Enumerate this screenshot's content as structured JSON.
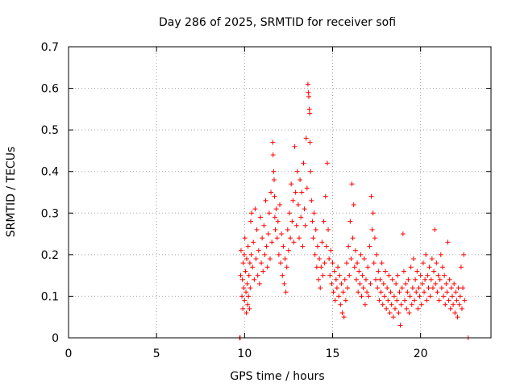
{
  "chart_data": {
    "type": "scatter",
    "title": "Day 286 of 2025, SRMTID for receiver sofi",
    "xlabel": "GPS time / hours",
    "ylabel": "SRMTID / TECUs",
    "xlim": [
      0,
      24
    ],
    "ylim": [
      0,
      0.7
    ],
    "xticks": [
      0,
      5,
      10,
      15,
      20
    ],
    "yticks": [
      0,
      0.1,
      0.2,
      0.3,
      0.4,
      0.5,
      0.6,
      0.7
    ],
    "xtick_labels": [
      "0",
      "5",
      "10",
      "15",
      "20"
    ],
    "ytick_labels": [
      "0",
      "0.1",
      "0.2",
      "0.3",
      "0.4",
      "0.5",
      "0.6",
      "0.7"
    ],
    "grid": true,
    "marker": "+",
    "color": "#ff0000",
    "series": [
      {
        "name": "SRMTID",
        "x": [
          9.72,
          9.75,
          9.78,
          9.8,
          9.85,
          9.88,
          9.9,
          9.92,
          9.95,
          9.98,
          10.0,
          10.02,
          10.05,
          10.08,
          10.1,
          10.12,
          10.15,
          10.18,
          10.2,
          10.22,
          10.25,
          10.28,
          10.3,
          10.32,
          10.35,
          10.38,
          10.4,
          10.45,
          10.5,
          10.55,
          10.6,
          10.65,
          10.7,
          10.75,
          10.8,
          10.85,
          10.9,
          10.95,
          11.0,
          11.05,
          11.1,
          11.15,
          11.2,
          11.25,
          11.3,
          11.35,
          11.4,
          11.45,
          11.5,
          11.55,
          11.6,
          11.62,
          11.65,
          11.68,
          11.7,
          11.72,
          11.75,
          11.8,
          11.85,
          11.9,
          11.95,
          12.0,
          12.05,
          12.1,
          12.15,
          12.2,
          12.25,
          12.3,
          12.35,
          12.4,
          12.45,
          12.5,
          12.55,
          12.6,
          12.65,
          12.7,
          12.75,
          12.8,
          12.85,
          12.9,
          12.95,
          13.0,
          13.05,
          13.1,
          13.15,
          13.2,
          13.25,
          13.3,
          13.35,
          13.4,
          13.45,
          13.5,
          13.55,
          13.6,
          13.62,
          13.65,
          13.68,
          13.7,
          13.72,
          13.75,
          13.8,
          13.85,
          13.9,
          13.95,
          14.0,
          14.05,
          14.1,
          14.15,
          14.2,
          14.25,
          14.3,
          14.35,
          14.4,
          14.45,
          14.5,
          14.55,
          14.6,
          14.65,
          14.7,
          14.75,
          14.8,
          14.85,
          14.9,
          14.95,
          15.0,
          15.05,
          15.1,
          15.15,
          15.2,
          15.25,
          15.3,
          15.35,
          15.4,
          15.45,
          15.5,
          15.55,
          15.6,
          15.65,
          15.7,
          15.75,
          15.8,
          15.85,
          15.9,
          15.95,
          16.0,
          16.05,
          16.1,
          16.15,
          16.2,
          16.25,
          16.3,
          16.35,
          16.4,
          16.45,
          16.5,
          16.55,
          16.6,
          16.65,
          16.7,
          16.75,
          16.8,
          16.85,
          16.9,
          16.95,
          17.0,
          17.05,
          17.1,
          17.15,
          17.2,
          17.25,
          17.3,
          17.35,
          17.4,
          17.45,
          17.5,
          17.55,
          17.6,
          17.65,
          17.7,
          17.75,
          17.8,
          17.85,
          17.9,
          17.95,
          18.0,
          18.05,
          18.1,
          18.15,
          18.2,
          18.25,
          18.3,
          18.35,
          18.4,
          18.45,
          18.5,
          18.55,
          18.6,
          18.65,
          18.7,
          18.75,
          18.8,
          18.85,
          18.9,
          18.95,
          19.0,
          19.05,
          19.1,
          19.15,
          19.2,
          19.25,
          19.3,
          19.35,
          19.4,
          19.45,
          19.5,
          19.55,
          19.6,
          19.65,
          19.7,
          19.75,
          19.8,
          19.85,
          19.9,
          19.95,
          20.0,
          20.05,
          20.1,
          20.15,
          20.2,
          20.25,
          20.3,
          20.35,
          20.4,
          20.45,
          20.5,
          20.55,
          20.6,
          20.65,
          20.7,
          20.75,
          20.8,
          20.85,
          20.9,
          20.95,
          21.0,
          21.05,
          21.1,
          21.15,
          21.2,
          21.25,
          21.3,
          21.35,
          21.4,
          21.45,
          21.5,
          21.55,
          21.6,
          21.65,
          21.7,
          21.75,
          21.8,
          21.85,
          21.9,
          21.95,
          22.0,
          22.05,
          22.1,
          22.15,
          22.2,
          22.25,
          22.3,
          22.35,
          22.4,
          22.45,
          22.5,
          22.7
        ],
        "y": [
          0.0,
          0.0,
          0.15,
          0.21,
          0.1,
          0.14,
          0.07,
          0.18,
          0.12,
          0.2,
          0.09,
          0.24,
          0.16,
          0.11,
          0.06,
          0.19,
          0.13,
          0.08,
          0.22,
          0.1,
          0.15,
          0.07,
          0.18,
          0.12,
          0.28,
          0.2,
          0.3,
          0.17,
          0.23,
          0.14,
          0.31,
          0.19,
          0.26,
          0.15,
          0.21,
          0.13,
          0.29,
          0.18,
          0.24,
          0.16,
          0.27,
          0.2,
          0.33,
          0.22,
          0.17,
          0.25,
          0.3,
          0.19,
          0.35,
          0.23,
          0.47,
          0.44,
          0.4,
          0.38,
          0.34,
          0.29,
          0.26,
          0.31,
          0.24,
          0.28,
          0.2,
          0.32,
          0.18,
          0.25,
          0.15,
          0.22,
          0.13,
          0.19,
          0.11,
          0.17,
          0.26,
          0.21,
          0.3,
          0.24,
          0.37,
          0.28,
          0.33,
          0.23,
          0.46,
          0.35,
          0.27,
          0.4,
          0.32,
          0.24,
          0.38,
          0.29,
          0.35,
          0.22,
          0.42,
          0.31,
          0.27,
          0.48,
          0.36,
          0.61,
          0.59,
          0.58,
          0.55,
          0.54,
          0.47,
          0.4,
          0.33,
          0.28,
          0.24,
          0.3,
          0.2,
          0.26,
          0.17,
          0.22,
          0.14,
          0.19,
          0.12,
          0.17,
          0.23,
          0.15,
          0.28,
          0.18,
          0.34,
          0.22,
          0.42,
          0.26,
          0.19,
          0.15,
          0.21,
          0.13,
          0.18,
          0.11,
          0.16,
          0.09,
          0.14,
          0.12,
          0.17,
          0.1,
          0.15,
          0.08,
          0.13,
          0.06,
          0.11,
          0.05,
          0.14,
          0.09,
          0.18,
          0.12,
          0.22,
          0.15,
          0.28,
          0.19,
          0.37,
          0.24,
          0.32,
          0.17,
          0.21,
          0.14,
          0.18,
          0.11,
          0.16,
          0.13,
          0.2,
          0.1,
          0.15,
          0.12,
          0.19,
          0.08,
          0.14,
          0.11,
          0.17,
          0.1,
          0.22,
          0.13,
          0.34,
          0.26,
          0.3,
          0.18,
          0.24,
          0.14,
          0.2,
          0.12,
          0.16,
          0.09,
          0.14,
          0.11,
          0.18,
          0.08,
          0.13,
          0.1,
          0.16,
          0.07,
          0.12,
          0.09,
          0.15,
          0.06,
          0.11,
          0.08,
          0.14,
          0.05,
          0.1,
          0.07,
          0.13,
          0.09,
          0.15,
          0.06,
          0.11,
          0.03,
          0.08,
          0.12,
          0.25,
          0.16,
          0.09,
          0.13,
          0.07,
          0.11,
          0.14,
          0.06,
          0.1,
          0.17,
          0.08,
          0.12,
          0.19,
          0.09,
          0.14,
          0.11,
          0.16,
          0.07,
          0.12,
          0.1,
          0.15,
          0.08,
          0.13,
          0.18,
          0.11,
          0.14,
          0.2,
          0.09,
          0.15,
          0.12,
          0.17,
          0.1,
          0.14,
          0.19,
          0.12,
          0.16,
          0.26,
          0.13,
          0.18,
          0.11,
          0.15,
          0.09,
          0.14,
          0.2,
          0.12,
          0.17,
          0.1,
          0.15,
          0.08,
          0.13,
          0.11,
          0.23,
          0.09,
          0.14,
          0.07,
          0.12,
          0.1,
          0.08,
          0.13,
          0.06,
          0.11,
          0.09,
          0.05,
          0.12,
          0.08,
          0.1,
          0.17,
          0.07,
          0.12,
          0.2,
          0.09,
          0.0
        ]
      }
    ]
  }
}
